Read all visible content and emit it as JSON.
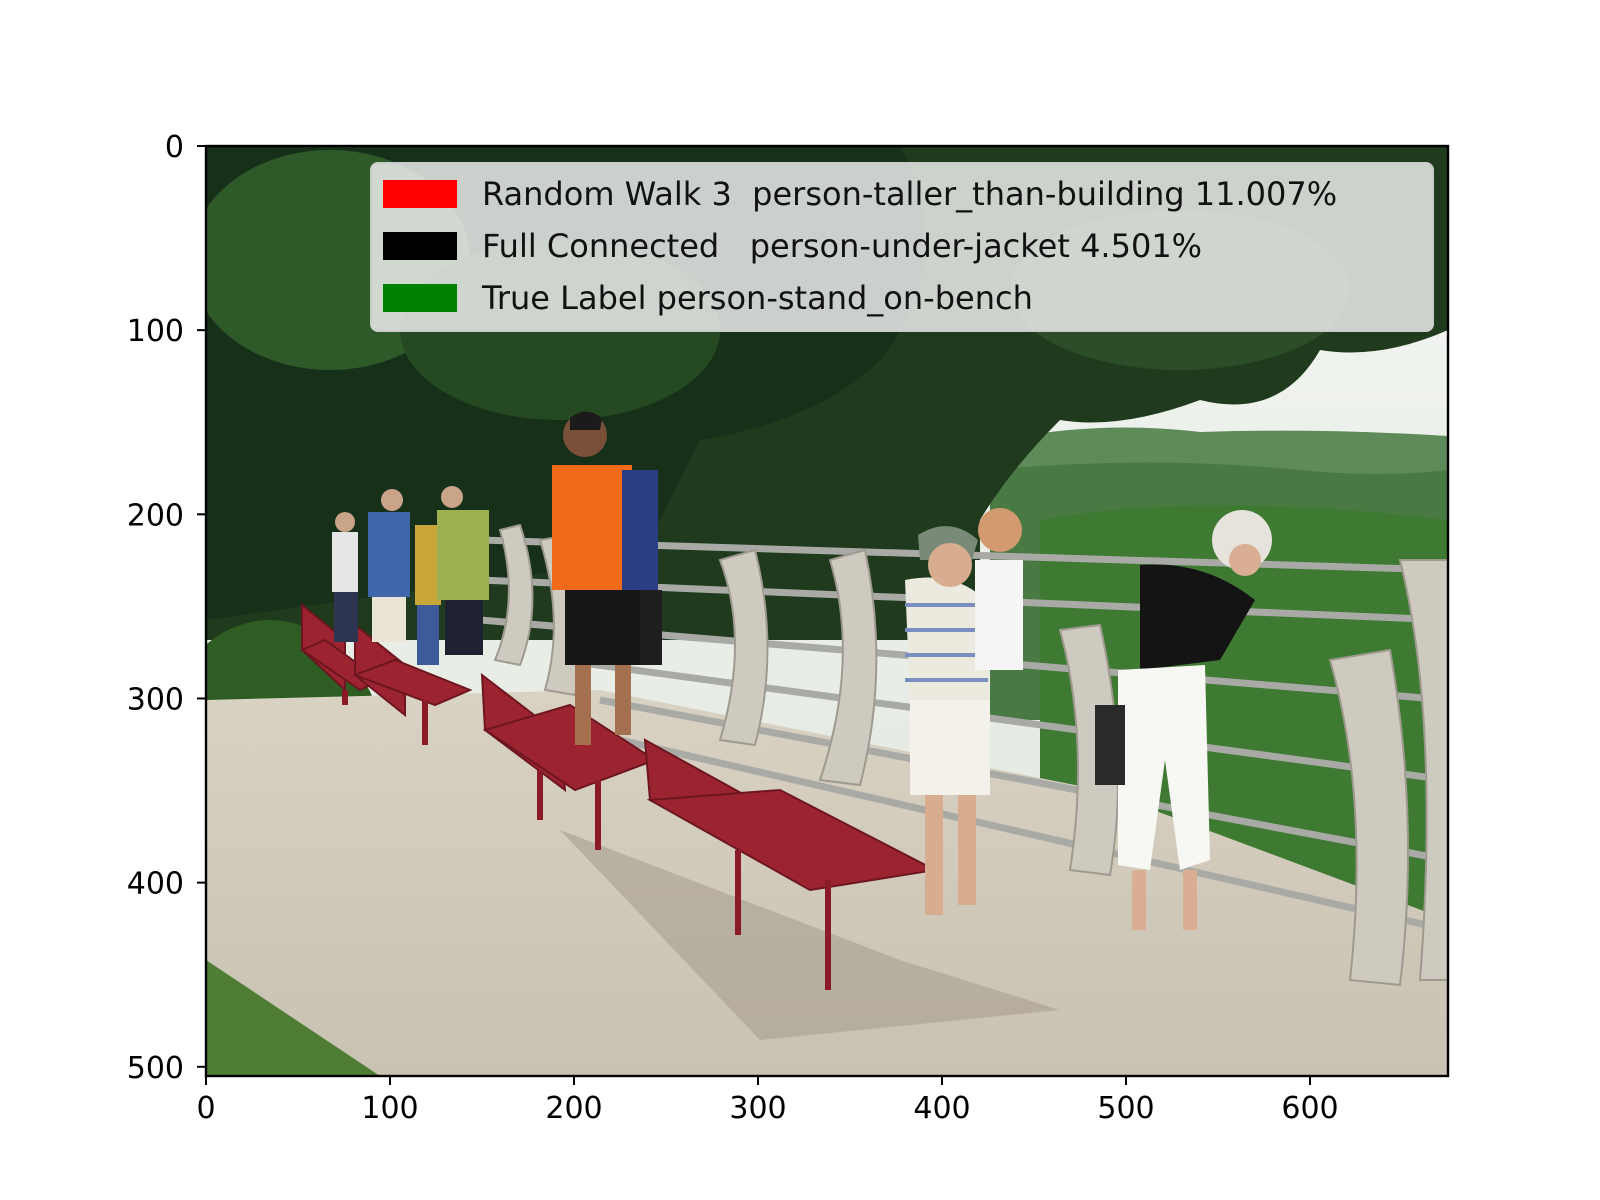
{
  "figure": {
    "x_ticks": [
      "0",
      "100",
      "200",
      "300",
      "400",
      "500",
      "600"
    ],
    "y_ticks": [
      "0",
      "100",
      "200",
      "300",
      "400",
      "500"
    ],
    "xlim": [
      0,
      675
    ],
    "ylim": [
      0,
      505
    ]
  },
  "legend": {
    "placement": "top-right",
    "items": [
      {
        "color": "#ff0000",
        "label": "Random Walk 3  person-taller_than-building 11.007%"
      },
      {
        "color": "#000000",
        "label": "Full Connected   person-under-jacket 4.501%"
      },
      {
        "color": "#008000",
        "label": "True Label person-stand_on-bench"
      }
    ]
  },
  "photo": {
    "scene": "people-at-overlook-with-red-benches"
  }
}
